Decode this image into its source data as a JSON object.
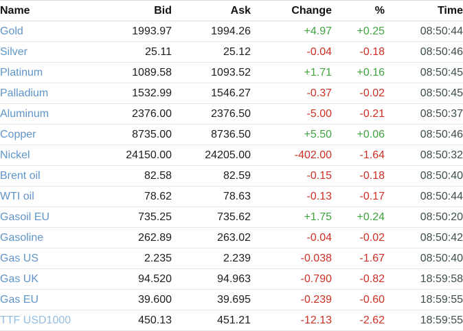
{
  "colors": {
    "name_link_blue": "#5f94c9",
    "name_link_blue_muted": "#94bcdf",
    "up_green": "#3fa23f",
    "down_red": "#cf2e24",
    "value_black": "#1c1c1c",
    "time_dark": "#3c4f4a",
    "row_border": "#e7e7e7"
  },
  "table": {
    "columns": [
      {
        "key": "name",
        "label": "Name"
      },
      {
        "key": "bid",
        "label": "Bid"
      },
      {
        "key": "ask",
        "label": "Ask"
      },
      {
        "key": "change",
        "label": "Change"
      },
      {
        "key": "percent",
        "label": "%"
      },
      {
        "key": "time",
        "label": "Time"
      }
    ],
    "rows": [
      {
        "name": "Gold",
        "bid": "1993.97",
        "ask": "1994.26",
        "change": "+4.97",
        "percent": "+0.25",
        "time": "08:50:44",
        "direction": "up",
        "muted": false
      },
      {
        "name": "Silver",
        "bid": "25.11",
        "ask": "25.12",
        "change": "-0.04",
        "percent": "-0.18",
        "time": "08:50:46",
        "direction": "down",
        "muted": false
      },
      {
        "name": "Platinum",
        "bid": "1089.58",
        "ask": "1093.52",
        "change": "+1.71",
        "percent": "+0.16",
        "time": "08:50:45",
        "direction": "up",
        "muted": false
      },
      {
        "name": "Palladium",
        "bid": "1532.99",
        "ask": "1546.27",
        "change": "-0.37",
        "percent": "-0.02",
        "time": "08:50:45",
        "direction": "down",
        "muted": false
      },
      {
        "name": "Aluminum",
        "bid": "2376.00",
        "ask": "2376.50",
        "change": "-5.00",
        "percent": "-0.21",
        "time": "08:50:37",
        "direction": "down",
        "muted": false
      },
      {
        "name": "Copper",
        "bid": "8735.00",
        "ask": "8736.50",
        "change": "+5.50",
        "percent": "+0.06",
        "time": "08:50:46",
        "direction": "up",
        "muted": false
      },
      {
        "name": "Nickel",
        "bid": "24150.00",
        "ask": "24205.00",
        "change": "-402.00",
        "percent": "-1.64",
        "time": "08:50:32",
        "direction": "down",
        "muted": false
      },
      {
        "name": "Brent oil",
        "bid": "82.58",
        "ask": "82.59",
        "change": "-0.15",
        "percent": "-0.18",
        "time": "08:50:40",
        "direction": "down",
        "muted": false
      },
      {
        "name": "WTI oil",
        "bid": "78.62",
        "ask": "78.63",
        "change": "-0.13",
        "percent": "-0.17",
        "time": "08:50:44",
        "direction": "down",
        "muted": false
      },
      {
        "name": "Gasoil EU",
        "bid": "735.25",
        "ask": "735.62",
        "change": "+1.75",
        "percent": "+0.24",
        "time": "08:50:20",
        "direction": "up",
        "muted": false
      },
      {
        "name": "Gasoline",
        "bid": "262.89",
        "ask": "263.02",
        "change": "-0.04",
        "percent": "-0.02",
        "time": "08:50:42",
        "direction": "down",
        "muted": false
      },
      {
        "name": "Gas US",
        "bid": "2.235",
        "ask": "2.239",
        "change": "-0.038",
        "percent": "-1.67",
        "time": "08:50:40",
        "direction": "down",
        "muted": false
      },
      {
        "name": "Gas UK",
        "bid": "94.520",
        "ask": "94.963",
        "change": "-0.790",
        "percent": "-0.82",
        "time": "18:59:58",
        "direction": "down",
        "muted": false
      },
      {
        "name": "Gas EU",
        "bid": "39.600",
        "ask": "39.695",
        "change": "-0.239",
        "percent": "-0.60",
        "time": "18:59:55",
        "direction": "down",
        "muted": false
      },
      {
        "name": "TTF USD1000",
        "bid": "450.13",
        "ask": "451.21",
        "change": "-12.13",
        "percent": "-2.62",
        "time": "18:59:55",
        "direction": "down",
        "muted": true
      }
    ]
  }
}
